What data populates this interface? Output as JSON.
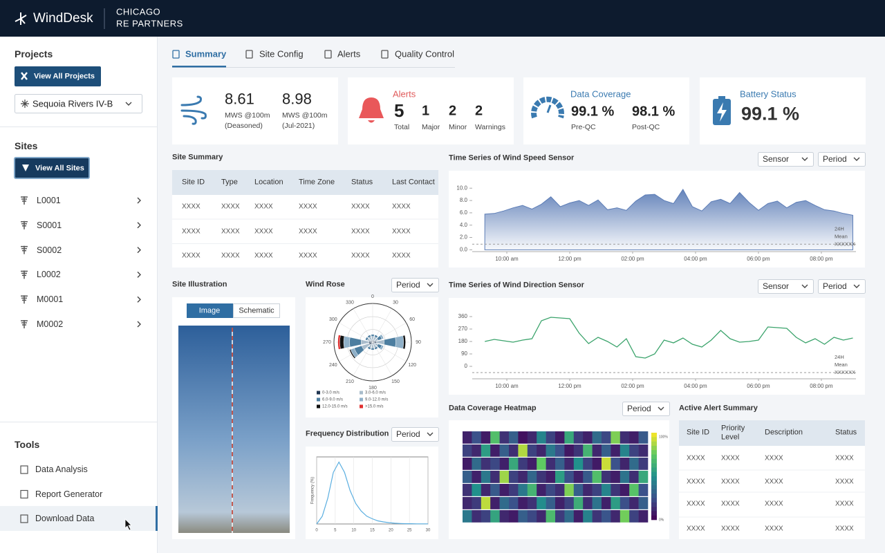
{
  "header": {
    "brand": "WindDesk",
    "company": [
      "CHICAGO",
      "RE PARTNERS"
    ]
  },
  "sidebar": {
    "projects_title": "Projects",
    "view_all_projects": "View All Projects",
    "project": "Sequoia Rivers IV-B",
    "sites_title": "Sites",
    "view_all_sites": "View All Sites",
    "sites": [
      "L0001",
      "S0001",
      "S0002",
      "L0002",
      "M0001",
      "M0002"
    ],
    "tools_title": "Tools",
    "tools": [
      "Data Analysis",
      "Report Generator",
      "Download Data"
    ]
  },
  "tabs": [
    "Summary",
    "Site Config",
    "Alerts",
    "Quality Control"
  ],
  "kpi": {
    "mws": [
      {
        "value": 8.61,
        "label": [
          "MWS @100m",
          "(Deasoned)"
        ]
      },
      {
        "value": 8.98,
        "label": [
          "MWS @100m",
          "(Jul-2021)"
        ]
      }
    ],
    "alerts": {
      "title": "Alerts",
      "counts": [
        {
          "value": 5,
          "label": "Total"
        },
        {
          "value": 1,
          "label": "Major"
        },
        {
          "value": 2,
          "label": "Minor"
        },
        {
          "value": 2,
          "label": "Warnings"
        }
      ]
    },
    "coverage": {
      "title": "Data Coverage",
      "items": [
        {
          "value": "99.1 %",
          "label": "Pre-QC"
        },
        {
          "value": "98.1 %",
          "label": "Post-QC"
        }
      ]
    },
    "battery": {
      "title": "Battery Status",
      "value": "99.1 %"
    }
  },
  "site_summary": {
    "title": "Site Summary",
    "columns": [
      "Site ID",
      "Type",
      "Location",
      "Time Zone",
      "Status",
      "Last Contact"
    ],
    "rows": [
      [
        "XXXX",
        "XXXX",
        "XXXX",
        "XXXX",
        "XXXX",
        "XXXX"
      ],
      [
        "XXXX",
        "XXXX",
        "XXXX",
        "XXXX",
        "XXXX",
        "XXXX"
      ],
      [
        "XXXX",
        "XXXX",
        "XXXX",
        "XXXX",
        "XXXX",
        "XXXX"
      ]
    ]
  },
  "wind_speed": {
    "type": "area",
    "title": "Time Series of Wind Speed Sensor",
    "filters": [
      "Sensor",
      "Period"
    ],
    "color": "#5b7cb6",
    "x": [
      9.3,
      9.6,
      9.9,
      10.2,
      10.5,
      10.8,
      11.1,
      11.4,
      11.7,
      12.0,
      12.3,
      12.6,
      12.9,
      13.2,
      13.5,
      13.8,
      14.1,
      14.4,
      14.7,
      15.0,
      15.3,
      15.6,
      15.9,
      16.2,
      16.5,
      16.8,
      17.1,
      17.4,
      17.7,
      18.0,
      18.3,
      18.6,
      18.9,
      19.2,
      19.5,
      19.8,
      20.1,
      20.4,
      20.7,
      21.0
    ],
    "values": [
      5.8,
      5.9,
      6.3,
      6.8,
      7.2,
      6.6,
      7.4,
      8.6,
      7.0,
      7.6,
      8.0,
      7.2,
      8.1,
      6.5,
      6.8,
      6.4,
      7.9,
      8.9,
      9.0,
      8.0,
      7.5,
      9.8,
      7.0,
      6.3,
      7.8,
      8.2,
      7.5,
      9.3,
      7.7,
      6.4,
      7.5,
      7.9,
      6.8,
      7.7,
      8.0,
      7.2,
      6.5,
      6.3,
      5.9,
      5.6
    ],
    "xlim": [
      8.9,
      21.1
    ],
    "xticks": [
      {
        "value": 10,
        "label": "10:00 am"
      },
      {
        "value": 12,
        "label": "12:00 pm"
      },
      {
        "value": 14,
        "label": "02:00 pm"
      },
      {
        "value": 16,
        "label": "04:00 pm"
      },
      {
        "value": 18,
        "label": "06:00 pm"
      },
      {
        "value": 20,
        "label": "08:00 pm"
      }
    ],
    "ylim": [
      -0.3,
      10.7
    ],
    "yticks": [
      {
        "value": 0,
        "label": "0.0"
      },
      {
        "value": 2,
        "label": "2.0"
      },
      {
        "value": 4,
        "label": "4.0"
      },
      {
        "value": 6,
        "label": "6.0"
      },
      {
        "value": 8,
        "label": "8.0"
      },
      {
        "value": 10,
        "label": "10.0"
      }
    ],
    "mean": {
      "value": 0.9,
      "label": [
        "24H",
        "Mean",
        "XXXXXX"
      ]
    }
  },
  "wind_direction": {
    "type": "line",
    "title": "Time Series of Wind Direction Sensor",
    "filters": [
      "Sensor",
      "Period"
    ],
    "color": "#3aa36b",
    "x": [
      9.3,
      9.6,
      9.9,
      10.2,
      10.5,
      10.8,
      11.1,
      11.4,
      11.7,
      12.0,
      12.3,
      12.6,
      12.9,
      13.2,
      13.5,
      13.8,
      14.1,
      14.4,
      14.7,
      15.0,
      15.3,
      15.6,
      15.9,
      16.2,
      16.5,
      16.8,
      17.1,
      17.4,
      17.7,
      18.0,
      18.3,
      18.6,
      18.9,
      19.2,
      19.5,
      19.8,
      20.1,
      20.4,
      20.7,
      21.0
    ],
    "values": [
      180,
      195,
      185,
      175,
      190,
      200,
      330,
      355,
      350,
      345,
      240,
      165,
      210,
      180,
      140,
      200,
      70,
      60,
      90,
      190,
      170,
      205,
      160,
      140,
      190,
      260,
      200,
      175,
      180,
      190,
      285,
      280,
      275,
      210,
      170,
      200,
      160,
      210,
      190,
      205
    ],
    "xlim": [
      8.9,
      21.1
    ],
    "xticks": [
      {
        "value": 10,
        "label": "10:00 am"
      },
      {
        "value": 12,
        "label": "12:00 pm"
      },
      {
        "value": 14,
        "label": "02:00 pm"
      },
      {
        "value": 16,
        "label": "04:00 pm"
      },
      {
        "value": 18,
        "label": "06:00 pm"
      },
      {
        "value": 20,
        "label": "08:00 pm"
      }
    ],
    "ylim": [
      -90,
      400
    ],
    "yticks": [
      0,
      90,
      180,
      270,
      360
    ],
    "mean": {
      "value": -45,
      "label": [
        "24H",
        "Mean",
        "XXXXXX"
      ]
    }
  },
  "site_illustration": {
    "title": "Site Illustration",
    "views": [
      "Image",
      "Schematic"
    ]
  },
  "wind_rose": {
    "type": "wind-rose",
    "title": "Wind Rose",
    "filter": "Period",
    "categories": [
      0,
      30,
      60,
      90,
      120,
      150,
      180,
      210,
      240,
      270,
      300,
      330
    ],
    "rlim": [
      0,
      10
    ],
    "series": [
      {
        "name": "0-3.0 m/s",
        "color": "#1f3550",
        "values": [
          0.5,
          0.5,
          0.5,
          1,
          0.5,
          0.5,
          0.5,
          0.5,
          1,
          1,
          0.5,
          0.5
        ]
      },
      {
        "name": "3.0-6.0 m/s",
        "color": "#a9bccb",
        "values": [
          1,
          1,
          1,
          2,
          1,
          1,
          1,
          1,
          2,
          2,
          1,
          1
        ]
      },
      {
        "name": "6.0-9.0 m/s",
        "color": "#4d7ea0",
        "values": [
          0.5,
          0.5,
          1,
          3,
          1,
          0.5,
          0.5,
          0.5,
          2,
          3,
          0.5,
          0.5
        ]
      },
      {
        "name": "9.0-12.0 m/s",
        "color": "#8fb0c8",
        "values": [
          0,
          0,
          0.5,
          2,
          0.5,
          0,
          0,
          0,
          1,
          1.5,
          0,
          0
        ]
      },
      {
        "name": "12.0-15.0 m/s",
        "color": "#111111",
        "values": [
          0,
          0,
          0,
          0.5,
          0,
          0,
          0,
          0,
          0.3,
          1,
          0,
          0
        ]
      },
      {
        "name": ">15.0 m/s",
        "color": "#e03030",
        "values": [
          0,
          0,
          0,
          0,
          0,
          0,
          0,
          0,
          0,
          0.5,
          0,
          0
        ]
      }
    ]
  },
  "frequency": {
    "type": "line",
    "title": "Frequency Distribution",
    "filter": "Period",
    "ylabel": "Frequency (%)",
    "color": "#5aaee0",
    "x": [
      0,
      1.5,
      3,
      4.5,
      6,
      7.5,
      9,
      10.5,
      12,
      13.5,
      15,
      16.5,
      18,
      19.5,
      21,
      22.5,
      24,
      25.5,
      27,
      28.5,
      30
    ],
    "values": [
      0,
      3,
      10,
      20,
      24,
      20,
      13,
      8,
      5,
      3,
      2,
      1.2,
      0.8,
      0.5,
      0.3,
      0.2,
      0.1,
      0.1,
      0.05,
      0.05,
      0.05
    ],
    "xlim": [
      0,
      30
    ],
    "xticks": [
      0,
      5,
      10,
      15,
      20,
      25,
      30
    ],
    "ylim": [
      0,
      26
    ]
  },
  "heatmap": {
    "type": "heatmap",
    "title": "Data Coverage Heatmap",
    "filter": "Period",
    "zlim": [
      0,
      100
    ],
    "colorbar": [
      "100%",
      "0%"
    ],
    "values": [
      [
        10,
        25,
        8,
        70,
        15,
        30,
        5,
        12,
        45,
        20,
        8,
        60,
        18,
        10,
        35,
        22,
        80,
        14,
        9,
        28
      ],
      [
        20,
        12,
        55,
        9,
        30,
        14,
        88,
        20,
        11,
        40,
        25,
        7,
        16,
        65,
        12,
        30,
        10,
        45,
        20,
        13
      ],
      [
        8,
        35,
        15,
        22,
        10,
        60,
        18,
        9,
        75,
        14,
        30,
        12,
        50,
        20,
        8,
        92,
        25,
        11,
        35,
        18
      ],
      [
        30,
        10,
        40,
        14,
        85,
        20,
        12,
        33,
        16,
        9,
        55,
        24,
        10,
        28,
        70,
        15,
        9,
        38,
        14,
        60
      ],
      [
        15,
        50,
        12,
        28,
        9,
        18,
        40,
        65,
        10,
        22,
        14,
        80,
        30,
        12,
        20,
        45,
        16,
        8,
        72,
        25
      ],
      [
        12,
        18,
        90,
        10,
        35,
        25,
        9,
        15,
        48,
        30,
        10,
        20,
        62,
        14,
        38,
        10,
        55,
        24,
        12,
        30
      ],
      [
        40,
        14,
        20,
        58,
        12,
        8,
        30,
        22,
        12,
        68,
        18,
        35,
        9,
        44,
        16,
        26,
        12,
        78,
        20,
        10
      ]
    ]
  },
  "alert_summary": {
    "title": "Active Alert Summary",
    "columns": [
      "Site ID",
      "Priority Level",
      "Description",
      "Status"
    ],
    "rows": [
      [
        "XXXX",
        "XXXX",
        "XXXX",
        "XXXX"
      ],
      [
        "XXXX",
        "XXXX",
        "XXXX",
        "XXXX"
      ],
      [
        "XXXX",
        "XXXX",
        "XXXX",
        "XXXX"
      ],
      [
        "XXXX",
        "XXXX",
        "XXXX",
        "XXXX"
      ]
    ]
  }
}
